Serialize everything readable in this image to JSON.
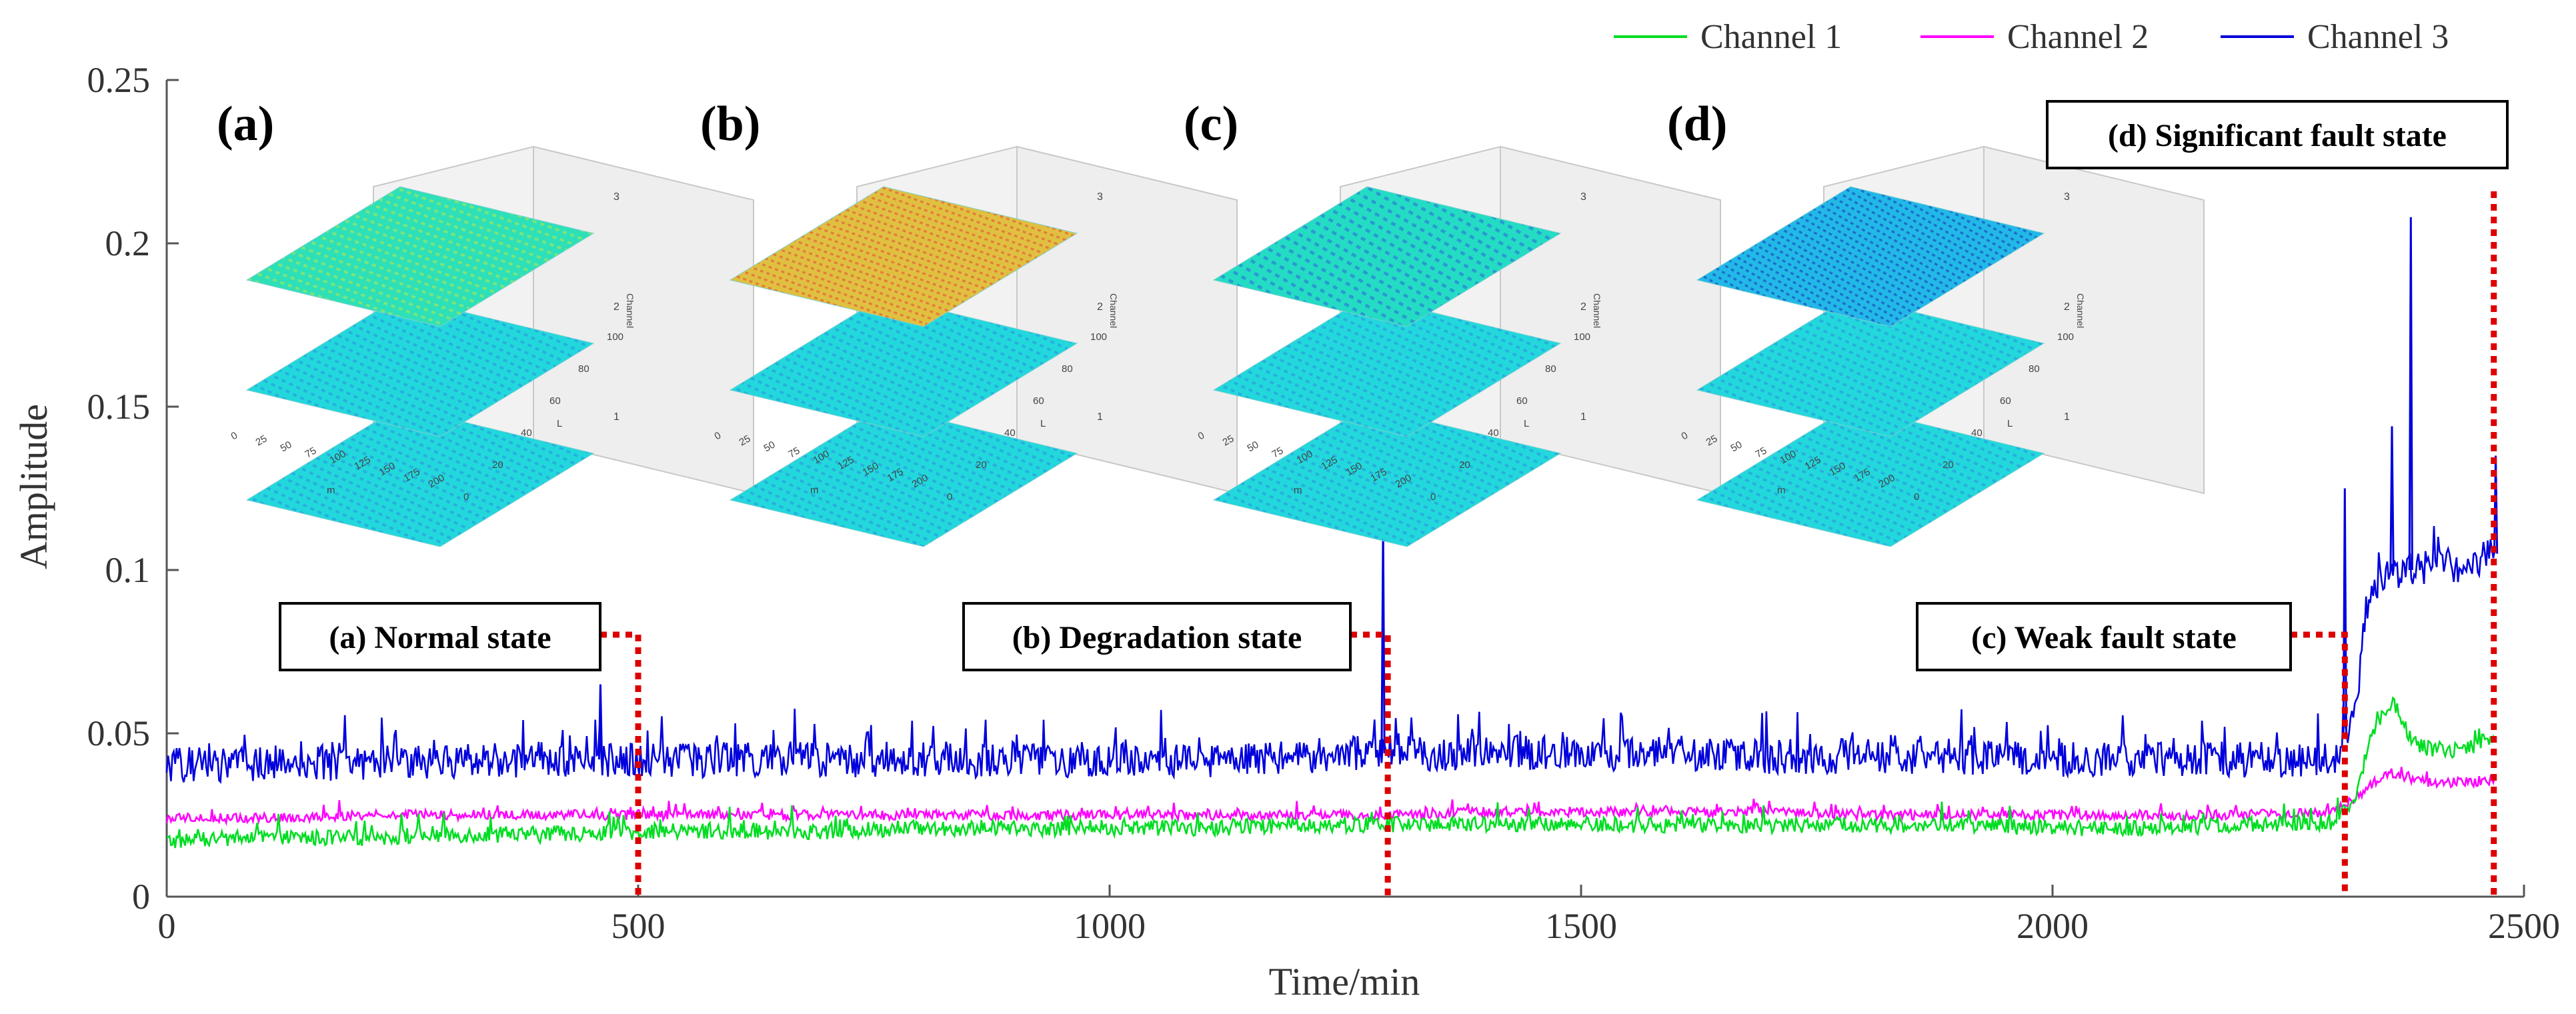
{
  "chart_data": {
    "type": "line",
    "title": "",
    "xlabel": "Time/min",
    "ylabel": "Amplitude",
    "xlim": [
      0,
      2500
    ],
    "ylim": [
      0,
      0.25
    ],
    "xticks": [
      0,
      500,
      1000,
      1500,
      2000,
      2500
    ],
    "xtick_labels": [
      "0",
      "500",
      "1000",
      "1500",
      "2000",
      "2500"
    ],
    "yticks": [
      0,
      0.05,
      0.1,
      0.15,
      0.2,
      0.25
    ],
    "ytick_labels": [
      "0",
      "0.05",
      "0.1",
      "0.15",
      "0.2",
      "0.25"
    ],
    "grid": false,
    "legend_position": "top-right",
    "colors": {
      "channel1": "#00dd22",
      "channel2": "#ff00ff",
      "channel3": "#0000dd",
      "marker": "#dd0000"
    },
    "series": [
      {
        "name": "Channel 1",
        "color": "#00dd22",
        "x": [
          0,
          100,
          200,
          300,
          400,
          500,
          600,
          700,
          800,
          900,
          1000,
          1100,
          1200,
          1300,
          1400,
          1500,
          1600,
          1700,
          1800,
          1900,
          2000,
          2100,
          2200,
          2300,
          2320,
          2340,
          2360,
          2380,
          2400,
          2440,
          2470
        ],
        "values": [
          0.017,
          0.018,
          0.018,
          0.019,
          0.019,
          0.02,
          0.02,
          0.02,
          0.021,
          0.021,
          0.021,
          0.021,
          0.022,
          0.022,
          0.022,
          0.022,
          0.022,
          0.022,
          0.022,
          0.022,
          0.021,
          0.021,
          0.022,
          0.023,
          0.03,
          0.05,
          0.06,
          0.048,
          0.045,
          0.045,
          0.05
        ],
        "noise": 0.0025
      },
      {
        "name": "Channel 2",
        "color": "#ff00ff",
        "x": [
          0,
          100,
          200,
          300,
          400,
          500,
          600,
          700,
          800,
          900,
          1000,
          1100,
          1200,
          1300,
          1400,
          1500,
          1600,
          1700,
          1800,
          1900,
          2000,
          2100,
          2200,
          2300,
          2320,
          2340,
          2360,
          2380,
          2400,
          2440,
          2470
        ],
        "values": [
          0.024,
          0.024,
          0.025,
          0.025,
          0.025,
          0.025,
          0.025,
          0.025,
          0.025,
          0.025,
          0.025,
          0.025,
          0.025,
          0.025,
          0.026,
          0.026,
          0.026,
          0.026,
          0.025,
          0.025,
          0.025,
          0.025,
          0.025,
          0.026,
          0.03,
          0.035,
          0.038,
          0.036,
          0.035,
          0.035,
          0.036
        ],
        "noise": 0.0015
      },
      {
        "name": "Channel 3",
        "color": "#0000dd",
        "x": [
          0,
          100,
          200,
          300,
          400,
          500,
          600,
          700,
          800,
          900,
          1000,
          1100,
          1200,
          1300,
          1400,
          1500,
          1600,
          1700,
          1800,
          1900,
          2000,
          2100,
          2200,
          2300,
          2320,
          2330,
          2340,
          2360,
          2380,
          2400,
          2440,
          2470
        ],
        "values": [
          0.04,
          0.041,
          0.041,
          0.041,
          0.042,
          0.042,
          0.042,
          0.042,
          0.042,
          0.042,
          0.042,
          0.042,
          0.043,
          0.044,
          0.044,
          0.044,
          0.044,
          0.043,
          0.043,
          0.043,
          0.042,
          0.042,
          0.042,
          0.042,
          0.055,
          0.08,
          0.095,
          0.1,
          0.1,
          0.101,
          0.102,
          0.105
        ],
        "noise": 0.0055,
        "spikes": [
          [
            460,
            0.065
          ],
          [
            1290,
            0.113
          ],
          [
            2310,
            0.125
          ],
          [
            2360,
            0.144
          ],
          [
            2380,
            0.208
          ],
          [
            2470,
            0.135
          ]
        ]
      }
    ],
    "state_markers": [
      {
        "label": "(a)  Normal state",
        "x": 500
      },
      {
        "label": "(b) Degradation state",
        "x": 1295
      },
      {
        "label": "(c) Weak fault state",
        "x": 2310
      },
      {
        "label": "(d) Significant fault state",
        "x": 2468
      }
    ],
    "insets": [
      {
        "letter": "(a)",
        "top_color": "#22e0b0"
      },
      {
        "letter": "(b)",
        "top_color": "#e8b030"
      },
      {
        "letter": "(c)",
        "top_color": "#20e0c0"
      },
      {
        "letter": "(d)",
        "top_color": "#20b8e8"
      }
    ],
    "inset_axes": {
      "m_ticks": [
        "0",
        "25",
        "50",
        "75",
        "100",
        "125",
        "150",
        "175",
        "200"
      ],
      "l_ticks": [
        "0",
        "20",
        "40",
        "60",
        "80",
        "100"
      ],
      "channel_ticks": [
        "1",
        "2",
        "3"
      ],
      "m_label": "m",
      "l_label": "L",
      "channel_label": "Channel"
    }
  }
}
